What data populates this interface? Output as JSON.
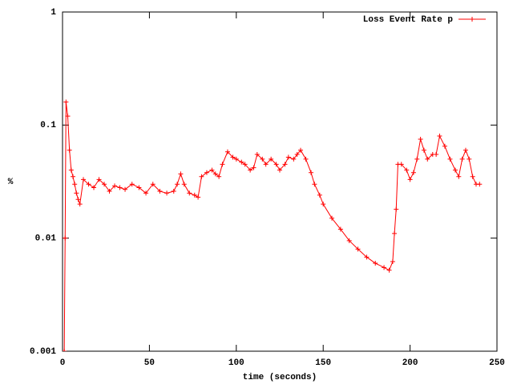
{
  "chart_data": {
    "type": "line",
    "x_label": "time (seconds)",
    "y_label": "%",
    "log_y": true,
    "legend": "top-right",
    "xlim": [
      0,
      250
    ],
    "xticks": [
      0,
      50,
      100,
      150,
      200,
      250
    ],
    "ylim": [
      0.001,
      1
    ],
    "yticks": [
      0.001,
      0.01,
      0.1,
      1
    ],
    "series": [
      {
        "name": "Loss Event Rate p",
        "color": "#ff0000",
        "x": [
          1,
          1.5,
          2,
          3,
          4,
          5,
          6,
          7,
          8,
          9,
          10,
          12,
          15,
          18,
          21,
          24,
          27,
          30,
          33,
          36,
          40,
          44,
          48,
          52,
          56,
          60,
          64,
          66,
          68,
          70,
          73,
          76,
          78,
          80,
          83,
          86,
          88,
          90,
          92,
          95,
          98,
          100,
          103,
          105,
          108,
          110,
          112,
          115,
          117,
          120,
          123,
          125,
          128,
          130,
          133,
          135,
          137,
          140,
          143,
          145,
          148,
          150,
          155,
          160,
          165,
          170,
          175,
          180,
          185,
          188,
          190,
          191,
          192,
          193,
          195,
          198,
          200,
          202,
          204,
          206,
          208,
          210,
          213,
          215,
          217,
          220,
          223,
          226,
          228,
          230,
          232,
          234,
          236,
          238,
          240
        ],
        "values": [
          0.001,
          0.01,
          0.16,
          0.12,
          0.06,
          0.04,
          0.035,
          0.03,
          0.025,
          0.022,
          0.02,
          0.033,
          0.03,
          0.028,
          0.033,
          0.03,
          0.026,
          0.029,
          0.028,
          0.027,
          0.03,
          0.028,
          0.025,
          0.03,
          0.026,
          0.025,
          0.026,
          0.03,
          0.037,
          0.03,
          0.025,
          0.024,
          0.023,
          0.035,
          0.038,
          0.04,
          0.037,
          0.035,
          0.045,
          0.058,
          0.052,
          0.05,
          0.047,
          0.045,
          0.04,
          0.042,
          0.055,
          0.05,
          0.045,
          0.05,
          0.045,
          0.04,
          0.045,
          0.052,
          0.05,
          0.055,
          0.06,
          0.05,
          0.038,
          0.03,
          0.024,
          0.02,
          0.015,
          0.012,
          0.0095,
          0.008,
          0.0068,
          0.006,
          0.0055,
          0.0052,
          0.0062,
          0.011,
          0.018,
          0.045,
          0.045,
          0.04,
          0.033,
          0.038,
          0.05,
          0.075,
          0.06,
          0.05,
          0.055,
          0.055,
          0.08,
          0.065,
          0.05,
          0.04,
          0.035,
          0.05,
          0.06,
          0.05,
          0.035,
          0.03,
          0.03
        ]
      }
    ]
  }
}
